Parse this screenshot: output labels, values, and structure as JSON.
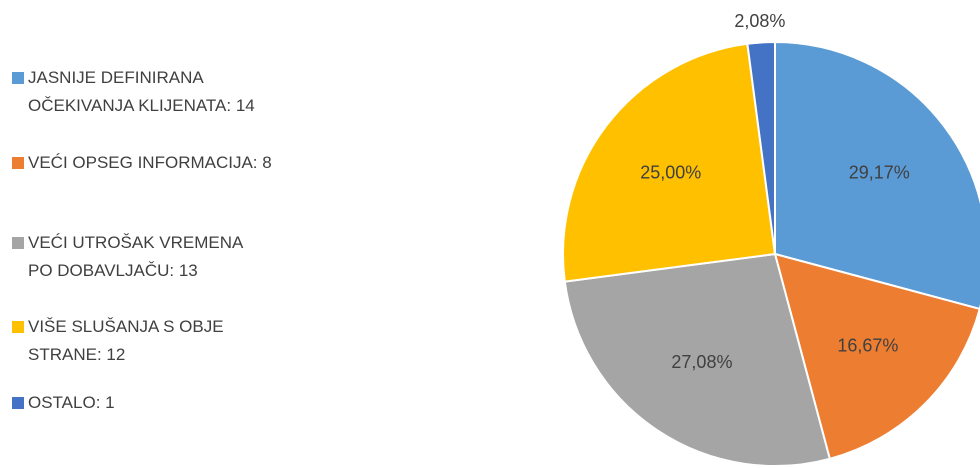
{
  "chart_data": {
    "type": "pie",
    "categories": [
      "JASNIJE DEFINIRANA OČEKIVANJA KLIJENATA: 14",
      "VEĆI OPSEG INFORMACIJA: 8",
      "VEĆI UTROŠAK VREMENA PO DOBAVLJAČU: 13",
      "VIŠE SLUŠANJA S OBJE STRANE: 12",
      "OSTALO: 1"
    ],
    "values": [
      29.17,
      16.67,
      27.08,
      25.0,
      2.08
    ],
    "value_labels": [
      "29,17%",
      "16,67%",
      "27,08%",
      "25,00%",
      "2,08%"
    ],
    "colors": [
      "#5b9bd5",
      "#ed7d31",
      "#a5a5a5",
      "#ffc000",
      "#4472c4"
    ],
    "legend": "left"
  }
}
